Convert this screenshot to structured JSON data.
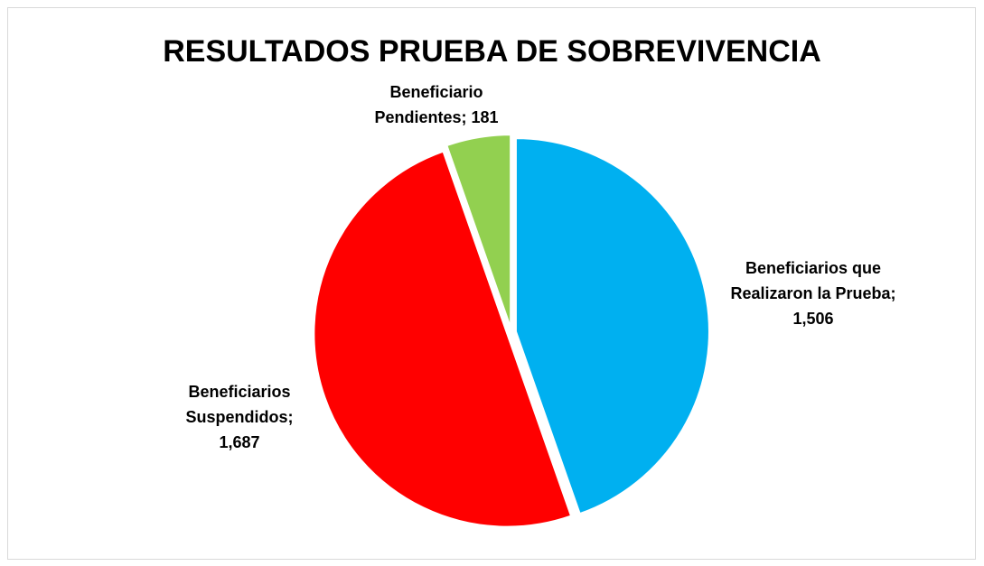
{
  "chart_data": {
    "type": "pie",
    "title": "RESULTADOS PRUEBA DE SOBREVIVENCIA",
    "values": [
      1506,
      1687,
      181
    ],
    "value_labels": [
      "Beneficiarios que Realizaron la Prueba; 1,506",
      "Beneficiarios Suspendidos; 1,687",
      "Beneficiario Pendientes; 181"
    ],
    "colors": [
      "#00b0f0",
      "#ff0000",
      "#92d050"
    ]
  }
}
